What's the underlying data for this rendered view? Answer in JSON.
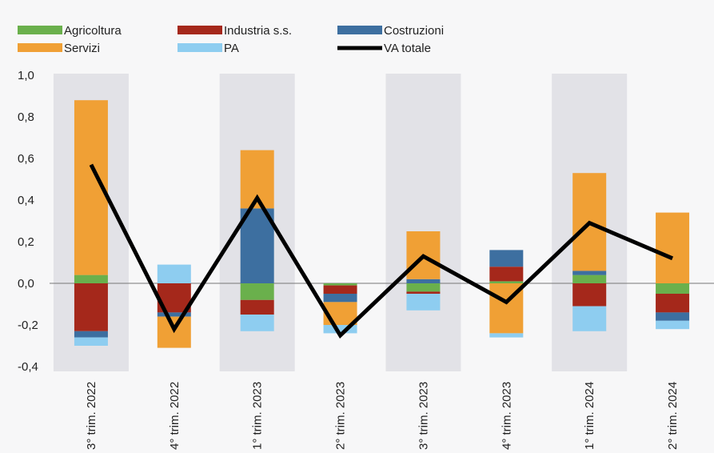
{
  "chart_data": {
    "type": "bar",
    "stacked": true,
    "categories": [
      "3° trim. 2022",
      "4° trim. 2022",
      "1° trim. 2023",
      "2° trim. 2023",
      "3° trim. 2023",
      "4° trim. 2023",
      "1° trim. 2024",
      "2° trim. 2024"
    ],
    "shaded_categories": [
      0,
      2,
      4,
      6
    ],
    "ylim": [
      -0.4,
      1.0
    ],
    "yticks": [
      1.0,
      0.8,
      0.6,
      0.4,
      0.2,
      0.0,
      -0.2,
      -0.4
    ],
    "ytick_labels": [
      "1,0",
      "0,8",
      "0,6",
      "0,4",
      "0,2",
      "0,0",
      "-0,2",
      "-0,4"
    ],
    "legend_position": "top",
    "series": [
      {
        "name": "Agricoltura",
        "color": "#6ab04c",
        "values": [
          0.04,
          0.0,
          -0.08,
          -0.01,
          -0.04,
          0.01,
          0.04,
          -0.05
        ]
      },
      {
        "name": "Industria s.s.",
        "color": "#a5281b",
        "values": [
          -0.23,
          -0.14,
          -0.07,
          -0.04,
          -0.01,
          0.07,
          -0.11,
          -0.09
        ]
      },
      {
        "name": "Costruzioni",
        "color": "#3d6fa0",
        "values": [
          -0.03,
          -0.02,
          0.36,
          -0.04,
          0.02,
          0.08,
          0.02,
          -0.04
        ]
      },
      {
        "name": "Servizi",
        "color": "#f0a035",
        "values": [
          0.84,
          -0.15,
          0.28,
          -0.11,
          0.23,
          -0.24,
          0.47,
          0.34
        ]
      },
      {
        "name": "PA",
        "color": "#8ecdf0",
        "values": [
          -0.04,
          0.09,
          -0.08,
          -0.04,
          -0.08,
          -0.02,
          -0.12,
          -0.04
        ]
      }
    ],
    "line": {
      "name": "VA totale",
      "color": "#000000",
      "values": [
        0.57,
        -0.22,
        0.41,
        -0.25,
        0.13,
        -0.09,
        0.29,
        0.12
      ]
    }
  }
}
